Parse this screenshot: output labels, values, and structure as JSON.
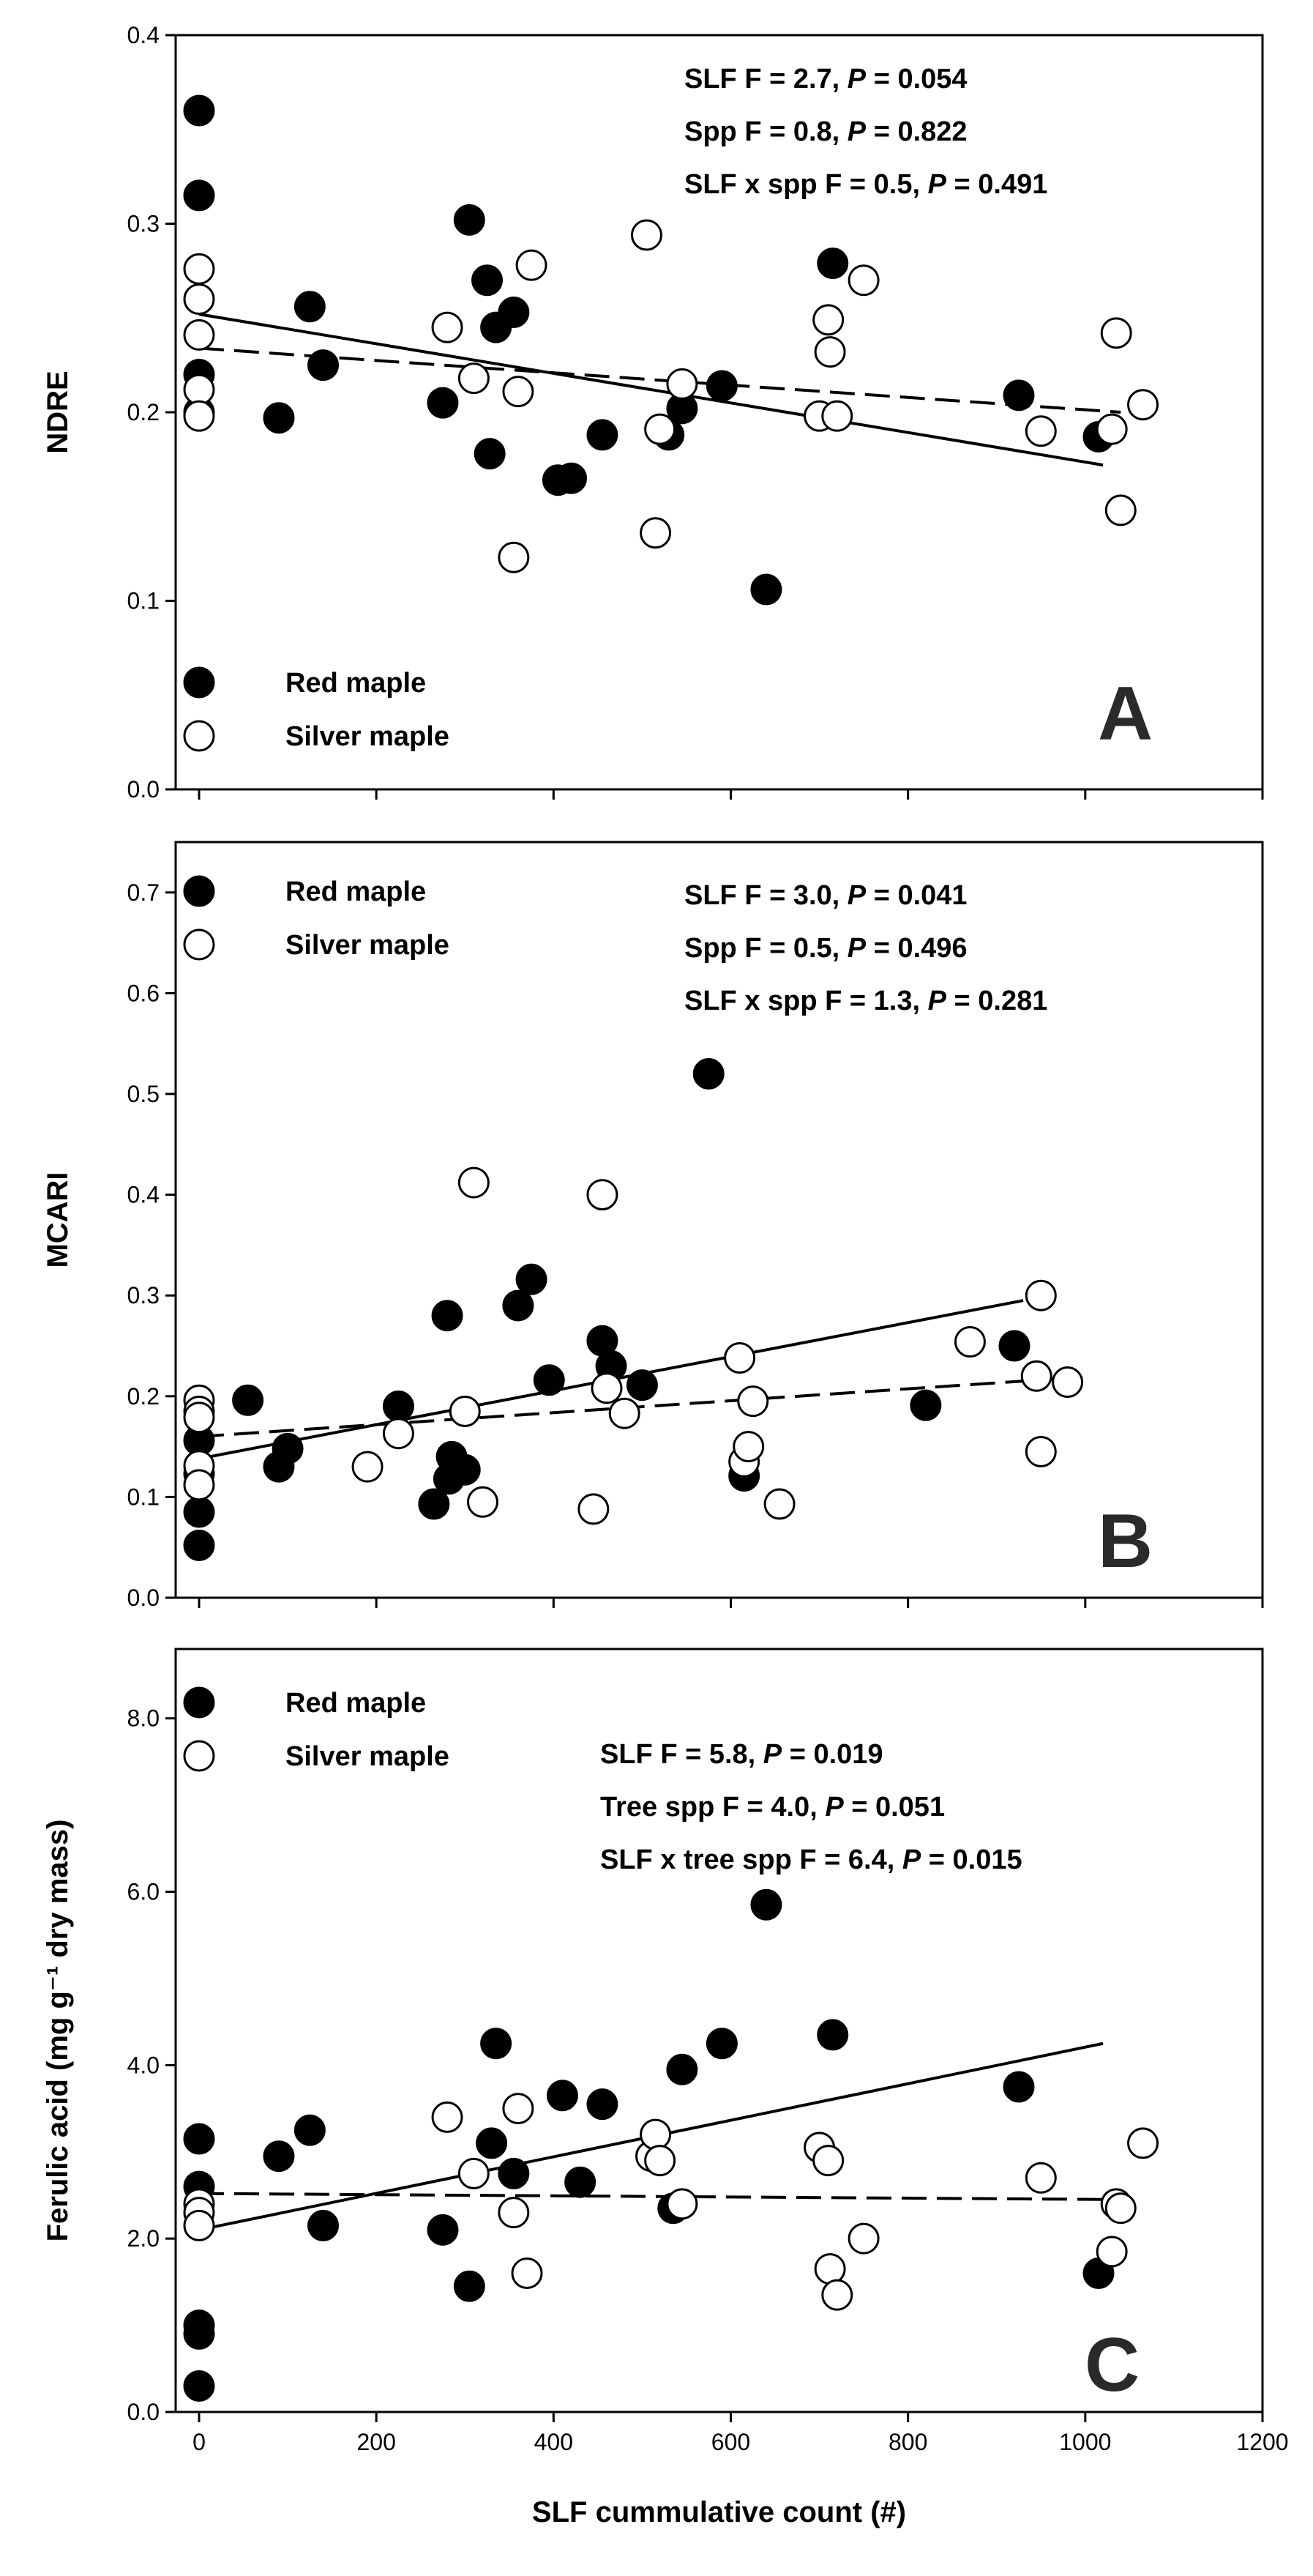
{
  "chart_data": [
    {
      "type": "scatter",
      "panel": "A",
      "ylabel": "NDRE",
      "xlim": [
        0,
        1200
      ],
      "ylim": [
        0,
        0.4
      ],
      "yticks": [
        "0.0",
        "0.1",
        "0.2",
        "0.3",
        "0.4"
      ],
      "legend": {
        "placement": "bottom-left",
        "entries": [
          "Red maple",
          "Silver maple"
        ]
      },
      "stats": [
        {
          "text": "SLF F = 2.7, ",
          "p_label": "P",
          "p_value": " = 0.054"
        },
        {
          "text": "Spp F = 0.8, ",
          "p_label": "P",
          "p_value": " = 0.822"
        },
        {
          "text": "SLF x spp F = 0.5, ",
          "p_label": "P",
          "p_value": " = 0.491"
        }
      ],
      "series": [
        {
          "name": "Red maple",
          "marker": "filled",
          "points": [
            [
              0,
              0.36
            ],
            [
              0,
              0.315
            ],
            [
              0,
              0.22
            ],
            [
              0,
              0.2
            ],
            [
              90,
              0.197
            ],
            [
              125,
              0.256
            ],
            [
              140,
              0.225
            ],
            [
              275,
              0.205
            ],
            [
              305,
              0.302
            ],
            [
              325,
              0.27
            ],
            [
              328,
              0.178
            ],
            [
              335,
              0.245
            ],
            [
              355,
              0.253
            ],
            [
              405,
              0.164
            ],
            [
              420,
              0.165
            ],
            [
              455,
              0.188
            ],
            [
              530,
              0.188
            ],
            [
              545,
              0.202
            ],
            [
              590,
              0.214
            ],
            [
              640,
              0.106
            ],
            [
              715,
              0.279
            ],
            [
              925,
              0.209
            ],
            [
              1015,
              0.187
            ]
          ]
        },
        {
          "name": "Silver maple",
          "marker": "open",
          "points": [
            [
              0,
              0.276
            ],
            [
              0,
              0.26
            ],
            [
              0,
              0.241
            ],
            [
              0,
              0.212
            ],
            [
              0,
              0.198
            ],
            [
              280,
              0.245
            ],
            [
              310,
              0.218
            ],
            [
              355,
              0.123
            ],
            [
              360,
              0.211
            ],
            [
              375,
              0.278
            ],
            [
              505,
              0.294
            ],
            [
              515,
              0.136
            ],
            [
              520,
              0.191
            ],
            [
              545,
              0.215
            ],
            [
              700,
              0.198
            ],
            [
              710,
              0.249
            ],
            [
              712,
              0.232
            ],
            [
              720,
              0.198
            ],
            [
              750,
              0.27
            ],
            [
              950,
              0.19
            ],
            [
              1030,
              0.191
            ],
            [
              1035,
              0.242
            ],
            [
              1040,
              0.148
            ],
            [
              1065,
              0.204
            ]
          ]
        }
      ],
      "fits": [
        {
          "name": "Red maple",
          "style": "solid",
          "from": [
            0,
            0.252
          ],
          "to": [
            1020,
            0.172
          ]
        },
        {
          "name": "Silver maple",
          "style": "dashed",
          "from": [
            0,
            0.234
          ],
          "to": [
            1040,
            0.2
          ]
        }
      ],
      "panel_letter": "A"
    },
    {
      "type": "scatter",
      "panel": "B",
      "ylabel": "MCARI",
      "xlim": [
        0,
        1200
      ],
      "ylim": [
        0,
        0.75
      ],
      "yticks": [
        "0.0",
        "0.1",
        "0.2",
        "0.3",
        "0.4",
        "0.5",
        "0.6",
        "0.7"
      ],
      "legend": {
        "placement": "top-left",
        "entries": [
          "Red maple",
          "Silver maple"
        ]
      },
      "stats": [
        {
          "text": "SLF F = 3.0, ",
          "p_label": "P",
          "p_value": " = 0.041"
        },
        {
          "text": "Spp F = 0.5, ",
          "p_label": "P",
          "p_value": " = 0.496"
        },
        {
          "text": "SLF x spp F = 1.3, ",
          "p_label": "P",
          "p_value": " = 0.281"
        }
      ],
      "series": [
        {
          "name": "Red maple",
          "marker": "filled",
          "points": [
            [
              0,
              0.156
            ],
            [
              0,
              0.123
            ],
            [
              0,
              0.085
            ],
            [
              0,
              0.052
            ],
            [
              55,
              0.196
            ],
            [
              90,
              0.13
            ],
            [
              100,
              0.148
            ],
            [
              225,
              0.19
            ],
            [
              265,
              0.093
            ],
            [
              280,
              0.28
            ],
            [
              282,
              0.118
            ],
            [
              285,
              0.14
            ],
            [
              300,
              0.127
            ],
            [
              360,
              0.29
            ],
            [
              375,
              0.316
            ],
            [
              395,
              0.216
            ],
            [
              455,
              0.255
            ],
            [
              465,
              0.23
            ],
            [
              500,
              0.211
            ],
            [
              575,
              0.52
            ],
            [
              615,
              0.121
            ],
            [
              820,
              0.191
            ],
            [
              920,
              0.25
            ]
          ]
        },
        {
          "name": "Silver maple",
          "marker": "open",
          "points": [
            [
              0,
              0.196
            ],
            [
              0,
              0.185
            ],
            [
              0,
              0.179
            ],
            [
              0,
              0.131
            ],
            [
              0,
              0.112
            ],
            [
              190,
              0.13
            ],
            [
              225,
              0.163
            ],
            [
              310,
              0.412
            ],
            [
              300,
              0.185
            ],
            [
              320,
              0.095
            ],
            [
              445,
              0.088
            ],
            [
              455,
              0.4
            ],
            [
              460,
              0.208
            ],
            [
              480,
              0.183
            ],
            [
              610,
              0.238
            ],
            [
              615,
              0.135
            ],
            [
              620,
              0.15
            ],
            [
              625,
              0.195
            ],
            [
              655,
              0.093
            ],
            [
              870,
              0.254
            ],
            [
              945,
              0.22
            ],
            [
              950,
              0.145
            ],
            [
              950,
              0.3
            ],
            [
              980,
              0.214
            ]
          ]
        }
      ],
      "fits": [
        {
          "name": "Red maple",
          "style": "solid",
          "from": [
            0,
            0.138
          ],
          "to": [
            930,
            0.295
          ]
        },
        {
          "name": "Silver maple",
          "style": "dashed",
          "from": [
            0,
            0.16
          ],
          "to": [
            980,
            0.218
          ]
        }
      ],
      "panel_letter": "B"
    },
    {
      "type": "scatter",
      "panel": "C",
      "ylabel": "Ferulic acid (mg g⁻¹ dry mass)",
      "xlabel": "SLF cummulative count (#)",
      "xlim": [
        0,
        1200
      ],
      "xticks": [
        "0",
        "200",
        "400",
        "600",
        "800",
        "1000",
        "1200"
      ],
      "ylim": [
        0,
        8.8
      ],
      "yticks": [
        "0.0",
        "2.0",
        "4.0",
        "6.0",
        "8.0"
      ],
      "legend": {
        "placement": "top-left",
        "entries": [
          "Red maple",
          "Silver maple"
        ]
      },
      "stats": [
        {
          "text": "SLF F = 5.8, ",
          "p_label": "P",
          "p_value": " = 0.019"
        },
        {
          "text": "Tree spp F = 4.0, ",
          "p_label": "P",
          "p_value": " = 0.051"
        },
        {
          "text": "SLF x tree spp F = 6.4, ",
          "p_label": "P",
          "p_value": " = 0.015"
        }
      ],
      "series": [
        {
          "name": "Red maple",
          "marker": "filled",
          "points": [
            [
              0,
              3.15
            ],
            [
              0,
              2.6
            ],
            [
              0,
              1.0
            ],
            [
              0,
              0.9
            ],
            [
              0,
              0.3
            ],
            [
              90,
              2.95
            ],
            [
              125,
              3.25
            ],
            [
              140,
              2.15
            ],
            [
              275,
              2.1
            ],
            [
              305,
              1.45
            ],
            [
              330,
              3.1
            ],
            [
              335,
              4.25
            ],
            [
              355,
              2.75
            ],
            [
              410,
              3.65
            ],
            [
              430,
              2.65
            ],
            [
              455,
              3.55
            ],
            [
              535,
              2.35
            ],
            [
              545,
              3.95
            ],
            [
              590,
              4.25
            ],
            [
              640,
              5.85
            ],
            [
              715,
              4.35
            ],
            [
              925,
              3.75
            ],
            [
              1015,
              1.6
            ]
          ]
        },
        {
          "name": "Silver maple",
          "marker": "open",
          "points": [
            [
              0,
              2.4
            ],
            [
              0,
              2.3
            ],
            [
              0,
              2.15
            ],
            [
              280,
              3.4
            ],
            [
              310,
              2.75
            ],
            [
              355,
              2.3
            ],
            [
              360,
              3.5
            ],
            [
              370,
              1.6
            ],
            [
              510,
              2.95
            ],
            [
              515,
              3.2
            ],
            [
              520,
              2.9
            ],
            [
              545,
              2.4
            ],
            [
              700,
              3.05
            ],
            [
              710,
              2.9
            ],
            [
              712,
              1.65
            ],
            [
              720,
              1.35
            ],
            [
              750,
              2.0
            ],
            [
              950,
              2.7
            ],
            [
              1030,
              1.85
            ],
            [
              1035,
              2.4
            ],
            [
              1040,
              2.35
            ],
            [
              1065,
              3.1
            ]
          ]
        }
      ],
      "fits": [
        {
          "name": "Red maple",
          "style": "solid",
          "from": [
            0,
            2.1
          ],
          "to": [
            1020,
            4.25
          ]
        },
        {
          "name": "Silver maple",
          "style": "dashed",
          "from": [
            0,
            2.52
          ],
          "to": [
            1040,
            2.45
          ]
        }
      ],
      "panel_letter": "C"
    }
  ]
}
